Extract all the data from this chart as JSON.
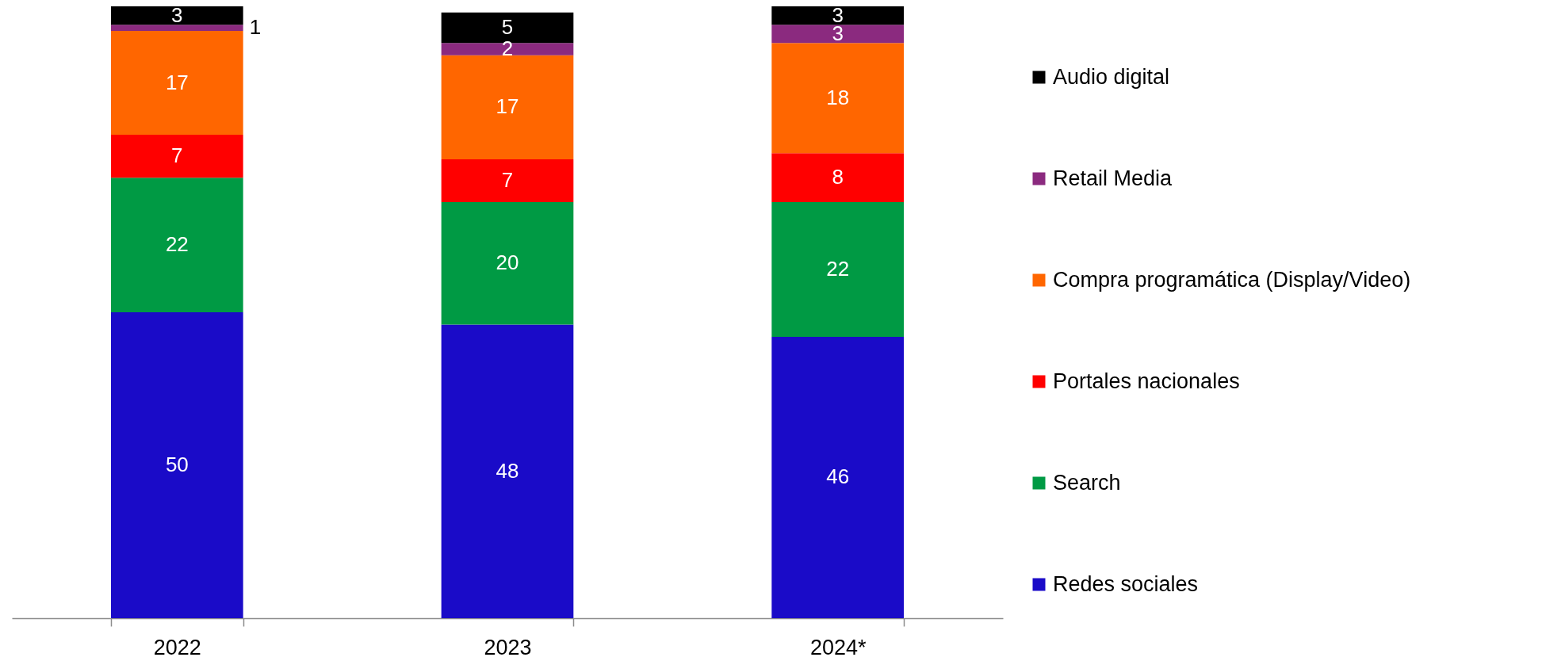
{
  "chart_data": {
    "type": "bar",
    "stacked": true,
    "data_labels": true,
    "legend": "right",
    "categories": [
      "2022",
      "2023",
      "2024*"
    ],
    "series": [
      {
        "name": "Redes sociales",
        "color": "#1a0bc8",
        "values": [
          50,
          48,
          46
        ]
      },
      {
        "name": "Search",
        "color": "#009a44",
        "values": [
          22,
          20,
          22
        ]
      },
      {
        "name": "Portales nacionales",
        "color": "#ff0000",
        "values": [
          7,
          7,
          8
        ]
      },
      {
        "name": "Compra programática (Display/Video)",
        "color": "#ff6600",
        "values": [
          17,
          17,
          18
        ]
      },
      {
        "name": "Retail Media",
        "color": "#8b2a7f",
        "values": [
          1,
          2,
          3
        ]
      },
      {
        "name": "Audio digital",
        "color": "#000000",
        "values": [
          3,
          5,
          3
        ]
      }
    ]
  }
}
